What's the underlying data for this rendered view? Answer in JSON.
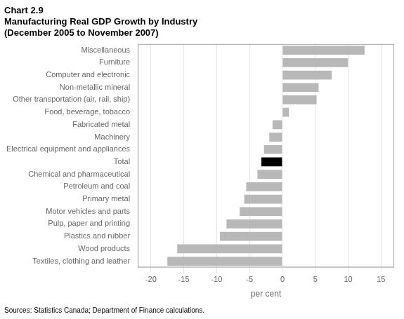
{
  "chart_data": {
    "type": "bar",
    "orientation": "horizontal",
    "title": [
      "Chart 2.9",
      "Manufacturing Real GDP Growth by Industry",
      "(December 2005 to November 2007)"
    ],
    "annotations": [
      "Sources: Statistics Canada; Department of Finance calculations."
    ],
    "x_label": "per cent",
    "categories": [
      "Miscellaneous",
      "Furniture",
      "Computer and electronic",
      "Non-metallic mineral",
      "Other transportation (air, rail, ship)",
      "Food, beverage, tobacco",
      "Fabricated metal",
      "Machinery",
      "Electrical equipment and appliances",
      "Total",
      "Chemical and pharmaceutical",
      "Petroleum and coal",
      "Primary metal",
      "Motor vehicles and parts",
      "Pulp, paper and printing",
      "Plastics and rubber",
      "Wood products",
      "Textiles, clothing and leather"
    ],
    "values": [
      12.5,
      10.0,
      7.5,
      5.5,
      5.2,
      1.0,
      -1.5,
      -2.0,
      -2.8,
      -3.2,
      -3.8,
      -5.5,
      -5.8,
      -6.5,
      -8.5,
      -9.5,
      -16.0,
      -17.5
    ],
    "colors": [
      "#b8b8b8",
      "#b8b8b8",
      "#b8b8b8",
      "#b8b8b8",
      "#b8b8b8",
      "#b8b8b8",
      "#b8b8b8",
      "#b8b8b8",
      "#b8b8b8",
      "#000000",
      "#b8b8b8",
      "#b8b8b8",
      "#b8b8b8",
      "#b8b8b8",
      "#b8b8b8",
      "#b8b8b8",
      "#b8b8b8",
      "#b8b8b8"
    ],
    "xlim": [
      -22,
      17
    ],
    "xticks": [
      -20,
      -15,
      -10,
      -5,
      0,
      5,
      10,
      15
    ],
    "grid": true
  }
}
